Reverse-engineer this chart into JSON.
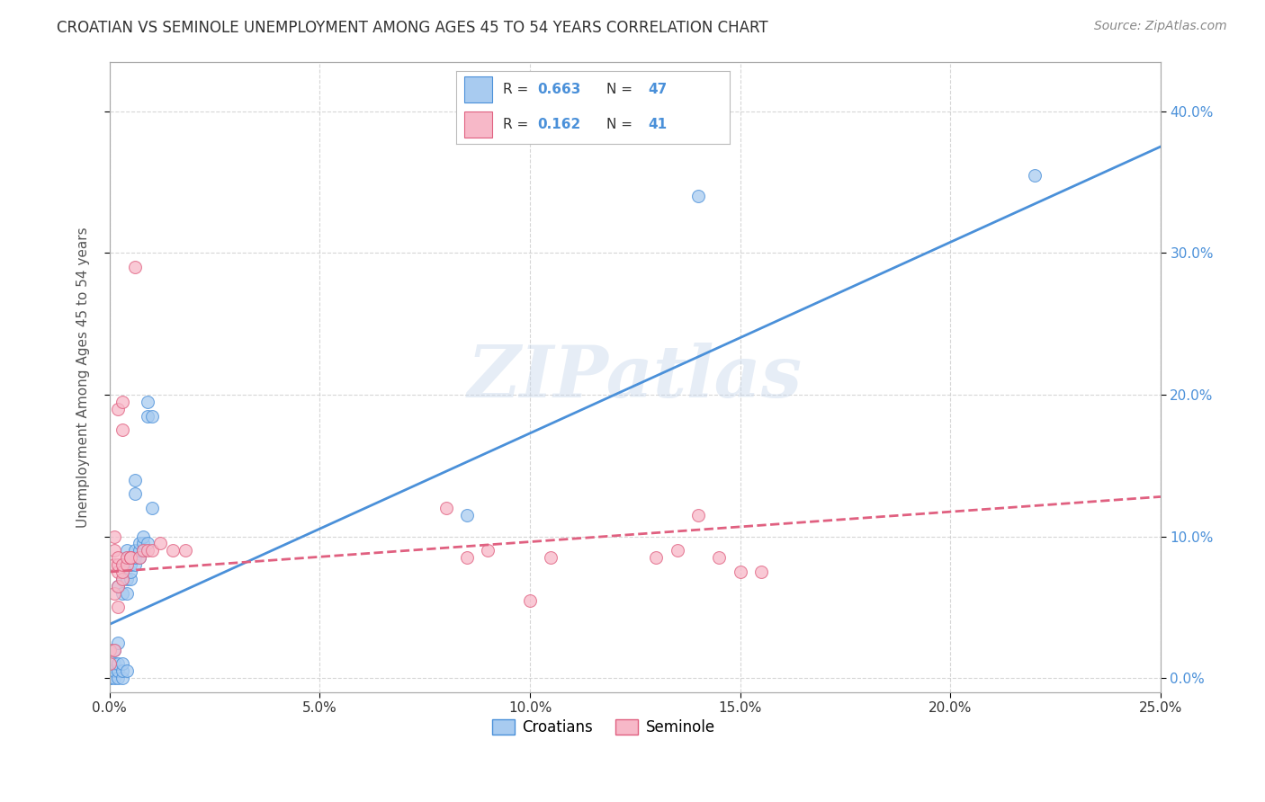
{
  "title": "CROATIAN VS SEMINOLE UNEMPLOYMENT AMONG AGES 45 TO 54 YEARS CORRELATION CHART",
  "source": "Source: ZipAtlas.com",
  "ylabel": "Unemployment Among Ages 45 to 54 years",
  "watermark": "ZIPatlas",
  "croatian_R": 0.663,
  "croatian_N": 47,
  "seminole_R": 0.162,
  "seminole_N": 41,
  "xlim": [
    0.0,
    0.25
  ],
  "ylim": [
    -0.01,
    0.435
  ],
  "xticks": [
    0.0,
    0.05,
    0.1,
    0.15,
    0.2,
    0.25
  ],
  "yticks": [
    0.0,
    0.1,
    0.2,
    0.3,
    0.4
  ],
  "croatian_color": "#A8CBF0",
  "seminole_color": "#F7B8C8",
  "trendline_croatian_color": "#4A90D9",
  "trendline_seminole_color": "#E06080",
  "trendline_croatian_y0": 0.038,
  "trendline_croatian_y1": 0.375,
  "trendline_seminole_y0": 0.075,
  "trendline_seminole_y1": 0.128,
  "croatian_scatter": [
    [
      0.0,
      0.0
    ],
    [
      0.0,
      0.0
    ],
    [
      0.0,
      0.005
    ],
    [
      0.001,
      0.0
    ],
    [
      0.001,
      0.005
    ],
    [
      0.001,
      0.01
    ],
    [
      0.001,
      0.02
    ],
    [
      0.002,
      0.0
    ],
    [
      0.002,
      0.005
    ],
    [
      0.002,
      0.01
    ],
    [
      0.002,
      0.025
    ],
    [
      0.002,
      0.065
    ],
    [
      0.003,
      0.0
    ],
    [
      0.003,
      0.005
    ],
    [
      0.003,
      0.01
    ],
    [
      0.003,
      0.06
    ],
    [
      0.003,
      0.07
    ],
    [
      0.003,
      0.08
    ],
    [
      0.004,
      0.005
    ],
    [
      0.004,
      0.06
    ],
    [
      0.004,
      0.07
    ],
    [
      0.004,
      0.08
    ],
    [
      0.004,
      0.085
    ],
    [
      0.004,
      0.09
    ],
    [
      0.005,
      0.07
    ],
    [
      0.005,
      0.075
    ],
    [
      0.005,
      0.08
    ],
    [
      0.005,
      0.085
    ],
    [
      0.006,
      0.08
    ],
    [
      0.006,
      0.085
    ],
    [
      0.006,
      0.09
    ],
    [
      0.006,
      0.13
    ],
    [
      0.006,
      0.14
    ],
    [
      0.007,
      0.085
    ],
    [
      0.007,
      0.09
    ],
    [
      0.007,
      0.095
    ],
    [
      0.008,
      0.09
    ],
    [
      0.008,
      0.095
    ],
    [
      0.008,
      0.1
    ],
    [
      0.009,
      0.095
    ],
    [
      0.009,
      0.185
    ],
    [
      0.009,
      0.195
    ],
    [
      0.01,
      0.185
    ],
    [
      0.01,
      0.12
    ],
    [
      0.085,
      0.115
    ],
    [
      0.14,
      0.34
    ],
    [
      0.22,
      0.355
    ]
  ],
  "seminole_scatter": [
    [
      0.0,
      0.01
    ],
    [
      0.0,
      0.02
    ],
    [
      0.001,
      0.02
    ],
    [
      0.001,
      0.06
    ],
    [
      0.001,
      0.08
    ],
    [
      0.001,
      0.09
    ],
    [
      0.001,
      0.1
    ],
    [
      0.002,
      0.05
    ],
    [
      0.002,
      0.065
    ],
    [
      0.002,
      0.075
    ],
    [
      0.002,
      0.08
    ],
    [
      0.002,
      0.085
    ],
    [
      0.002,
      0.19
    ],
    [
      0.003,
      0.07
    ],
    [
      0.003,
      0.075
    ],
    [
      0.003,
      0.08
    ],
    [
      0.003,
      0.175
    ],
    [
      0.003,
      0.195
    ],
    [
      0.004,
      0.08
    ],
    [
      0.004,
      0.085
    ],
    [
      0.005,
      0.085
    ],
    [
      0.005,
      0.085
    ],
    [
      0.006,
      0.29
    ],
    [
      0.007,
      0.085
    ],
    [
      0.008,
      0.09
    ],
    [
      0.009,
      0.09
    ],
    [
      0.01,
      0.09
    ],
    [
      0.012,
      0.095
    ],
    [
      0.015,
      0.09
    ],
    [
      0.018,
      0.09
    ],
    [
      0.08,
      0.12
    ],
    [
      0.085,
      0.085
    ],
    [
      0.09,
      0.09
    ],
    [
      0.1,
      0.055
    ],
    [
      0.105,
      0.085
    ],
    [
      0.13,
      0.085
    ],
    [
      0.135,
      0.09
    ],
    [
      0.14,
      0.115
    ],
    [
      0.145,
      0.085
    ],
    [
      0.15,
      0.075
    ],
    [
      0.155,
      0.075
    ]
  ]
}
